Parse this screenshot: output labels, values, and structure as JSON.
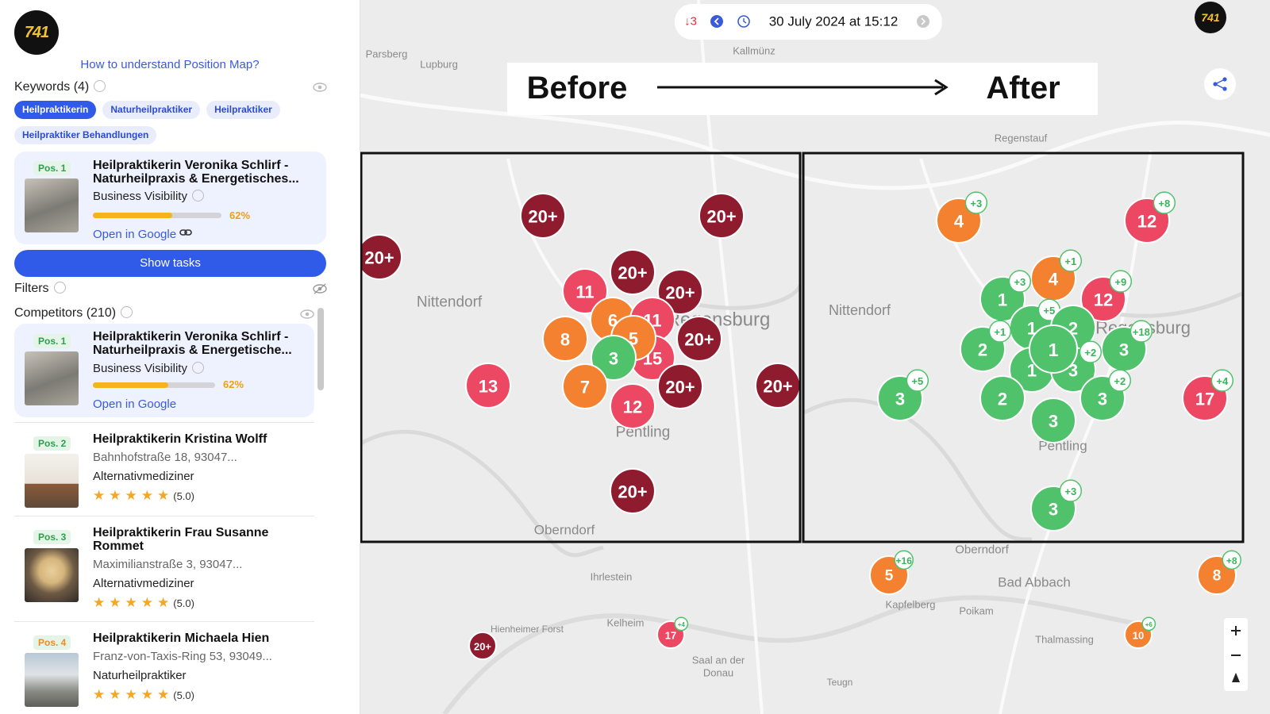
{
  "sidebar": {
    "logo": "741",
    "help_link": "How to understand Position Map?",
    "keywords": {
      "title": "Keywords (4)",
      "items": [
        "Heilpraktikerin",
        "Naturheilpraktiker",
        "Heilpraktiker",
        "Heilpraktiker Behandlungen"
      ]
    },
    "business": {
      "position": "Pos. 1",
      "name": "Heilpraktikerin Veronika Schlirf - Naturheilpraxis & Energetisches...",
      "metric": "Business Visibility",
      "visibility": {
        "value": 62,
        "label": "62%"
      },
      "visibility_range": [
        0,
        100
      ],
      "link": "Open in Google"
    },
    "button": "Show tasks",
    "filters": "Filters",
    "competitors": {
      "title": "Competitors (210)",
      "items": [
        {
          "position": "Pos. 1",
          "badge_color": "#2e9e4f",
          "name": "Heilpraktikerin Veronika Schlirf - Naturheilpraxis & Energetische...",
          "metric": "Business Visibility",
          "visibility": {
            "value": 62,
            "label": "62%"
          },
          "visibility_range": [
            0,
            100
          ],
          "link": "Open in Google"
        },
        {
          "position": "Pos. 2",
          "badge_color": "#2e9e4f",
          "name": "Heilpraktikerin Kristina Wolff",
          "address": "Bahnhofstraße 18, 93047...",
          "category": "Alternativmediziner",
          "rating": "(5.0)"
        },
        {
          "position": "Pos. 3",
          "badge_color": "#2e9e4f",
          "name": "Heilpraktikerin Frau Susanne Rommet",
          "address": "Maximilianstraße 3, 93047...",
          "category": "Alternativmediziner",
          "rating": "(5.0)"
        },
        {
          "position": "Pos. 4",
          "badge_color": "#f08a24",
          "name": "Heilpraktikerin Michaela Hien",
          "address": "Franz-von-Taxis-Ring 53, 93049...",
          "category": "Naturheilpraktiker",
          "rating": "(5.0)"
        }
      ]
    }
  },
  "map": {
    "date_change": "↓3",
    "date": "30 July 2024 at 15:12",
    "logo": "741",
    "before_label": "Before",
    "after_label": "After",
    "places": [
      "Parsberg",
      "Lupburg",
      "Kallmünz",
      "Regenstauf",
      "Nittendorf",
      "Nittendorf",
      "Regensburg",
      "Regensburg",
      "Pentling",
      "Pentling",
      "Oberndorf",
      "Oberndorf",
      "Ihrlestein",
      "Bad Abbach",
      "Kapfelberg",
      "Poikam",
      "Hienheimer Forst",
      "Kelheim",
      "Saal an der",
      "Donau",
      "Thalmassing",
      "Teugn"
    ],
    "before_markers": [
      {
        "label": "20+",
        "color": "#8e1b2e"
      },
      {
        "label": "20+",
        "color": "#8e1b2e"
      },
      {
        "label": "20+",
        "color": "#8e1b2e"
      },
      {
        "label": "20+",
        "color": "#8e1b2e"
      },
      {
        "label": "11",
        "color": "#ec4863"
      },
      {
        "label": "20+",
        "color": "#8e1b2e"
      },
      {
        "label": "6",
        "color": "#f3812f"
      },
      {
        "label": "11",
        "color": "#ec4863"
      },
      {
        "label": "15",
        "color": "#ec4863"
      },
      {
        "label": "8",
        "color": "#f3812f"
      },
      {
        "label": "5",
        "color": "#f3812f"
      },
      {
        "label": "20+",
        "color": "#8e1b2e"
      },
      {
        "label": "3",
        "color": "#4fc26b"
      },
      {
        "label": "13",
        "color": "#ec4863"
      },
      {
        "label": "7",
        "color": "#f3812f"
      },
      {
        "label": "20+",
        "color": "#8e1b2e"
      },
      {
        "label": "20+",
        "color": "#8e1b2e"
      },
      {
        "label": "12",
        "color": "#ec4863"
      },
      {
        "label": "20+",
        "color": "#8e1b2e"
      }
    ],
    "after_markers": [
      {
        "label": "4",
        "color": "#f3812f",
        "change": "+3"
      },
      {
        "label": "12",
        "color": "#ec4863",
        "change": "+8"
      },
      {
        "label": "4",
        "color": "#f3812f",
        "change": "+1"
      },
      {
        "label": "1",
        "color": "#4fc26b",
        "change": "+3"
      },
      {
        "label": "12",
        "color": "#ec4863",
        "change": "+9"
      },
      {
        "label": "1",
        "color": "#4fc26b",
        "change": "+5"
      },
      {
        "label": "2",
        "color": "#4fc26b"
      },
      {
        "label": "2",
        "color": "#4fc26b",
        "change": "+1"
      },
      {
        "label": "3",
        "color": "#4fc26b",
        "change": "+18"
      },
      {
        "label": "1",
        "color": "#4fc26b"
      },
      {
        "label": "3",
        "color": "#4fc26b",
        "change": "+2"
      },
      {
        "label": "1",
        "color": "#4fc26b"
      },
      {
        "label": "3",
        "color": "#4fc26b",
        "change": "+5"
      },
      {
        "label": "2",
        "color": "#4fc26b"
      },
      {
        "label": "3",
        "color": "#4fc26b",
        "change": "+2"
      },
      {
        "label": "17",
        "color": "#ec4863",
        "change": "+4"
      },
      {
        "label": "3",
        "color": "#4fc26b"
      },
      {
        "label": "3",
        "color": "#4fc26b",
        "change": "+3"
      }
    ],
    "outside_markers": [
      {
        "label": "5",
        "color": "#f3812f",
        "change": "+16"
      },
      {
        "label": "8",
        "color": "#f3812f",
        "change": "+8"
      },
      {
        "label": "17",
        "color": "#ec4863",
        "change": "+4"
      },
      {
        "label": "10",
        "color": "#f3812f",
        "change": "+6"
      },
      {
        "label": "20+",
        "color": "#8e1b2e"
      }
    ]
  }
}
